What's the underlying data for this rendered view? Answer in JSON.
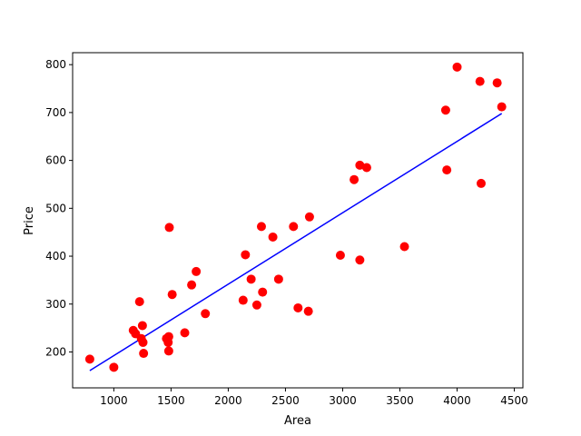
{
  "chart_data": {
    "type": "scatter",
    "xlabel": "Area",
    "ylabel": "Price",
    "xlim": [
      640,
      4575
    ],
    "ylim": [
      125,
      825
    ],
    "xticks": [
      1000,
      1500,
      2000,
      2500,
      3000,
      3500,
      4000,
      4500
    ],
    "yticks": [
      200,
      300,
      400,
      500,
      600,
      700,
      800
    ],
    "grid": false,
    "legend": "none",
    "series": [
      {
        "kind": "scatter",
        "color": "#ff0000",
        "points": [
          [
            790,
            185
          ],
          [
            1000,
            168
          ],
          [
            1170,
            245
          ],
          [
            1190,
            238
          ],
          [
            1225,
            305
          ],
          [
            1240,
            228
          ],
          [
            1250,
            255
          ],
          [
            1255,
            220
          ],
          [
            1260,
            197
          ],
          [
            1460,
            228
          ],
          [
            1475,
            220
          ],
          [
            1480,
            232
          ],
          [
            1480,
            202
          ],
          [
            1485,
            460
          ],
          [
            1510,
            320
          ],
          [
            1620,
            240
          ],
          [
            1680,
            340
          ],
          [
            1720,
            368
          ],
          [
            1800,
            280
          ],
          [
            2130,
            308
          ],
          [
            2150,
            403
          ],
          [
            2200,
            352
          ],
          [
            2250,
            298
          ],
          [
            2290,
            462
          ],
          [
            2300,
            325
          ],
          [
            2390,
            440
          ],
          [
            2440,
            352
          ],
          [
            2570,
            462
          ],
          [
            2610,
            292
          ],
          [
            2700,
            285
          ],
          [
            2710,
            482
          ],
          [
            2980,
            402
          ],
          [
            3100,
            560
          ],
          [
            3150,
            590
          ],
          [
            3150,
            392
          ],
          [
            3210,
            585
          ],
          [
            3540,
            420
          ],
          [
            3900,
            705
          ],
          [
            3910,
            580
          ],
          [
            4000,
            795
          ],
          [
            4200,
            765
          ],
          [
            4210,
            552
          ],
          [
            4350,
            762
          ],
          [
            4390,
            712
          ]
        ]
      },
      {
        "kind": "line",
        "color": "#0000ff",
        "points": [
          [
            790,
            161
          ],
          [
            4390,
            698
          ]
        ]
      }
    ]
  }
}
